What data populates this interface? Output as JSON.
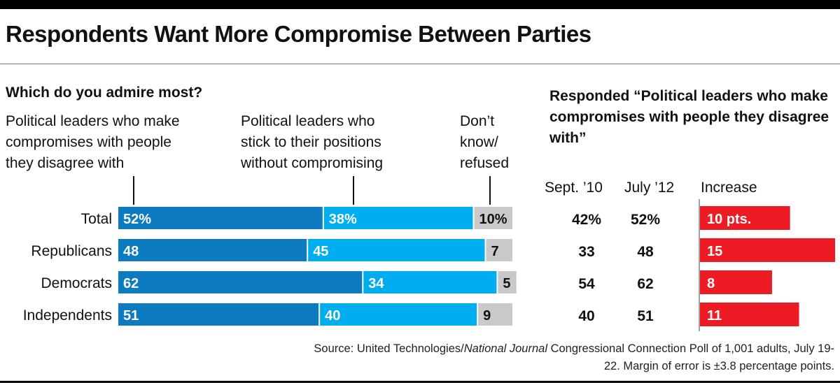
{
  "title": "Respondents Want More Compromise Between Parties",
  "question": "Which do you admire most?",
  "options": [
    "Political leaders who make\ncompromises with people\nthey disagree with",
    "Political leaders who\nstick to their positions\nwithout compromising",
    "Don’t\nknow/\nrefused"
  ],
  "right_heading": "Responded “Political leaders who make compromises with people they disagree with”",
  "columns": {
    "sept": "Sept. ’10",
    "july": "July ’12",
    "increase": "Increase"
  },
  "source": {
    "prefix": "Source: United Technologies/",
    "italic": "National Journal",
    "suffix": " Congressional Connection Poll of 1,001 adults, July 19-22. Margin of error is ±3.8 percentage points."
  },
  "colors": {
    "compromise": "#0c7bbf",
    "stick": "#00aeef",
    "dont_know": "#c9c9cb",
    "increase": "#ed1c24",
    "label_light": "#ffffff",
    "label_dark": "#111111"
  },
  "chart_data": [
    {
      "type": "bar",
      "orientation": "horizontal",
      "stacked": true,
      "categories": [
        "Total",
        "Republicans",
        "Democrats",
        "Independents"
      ],
      "series": [
        {
          "name": "Political leaders who make compromises with people they disagree with",
          "values": [
            52,
            48,
            62,
            51
          ],
          "labels": [
            "52%",
            "48",
            "62",
            "51"
          ]
        },
        {
          "name": "Political leaders who stick to their positions without compromising",
          "values": [
            38,
            45,
            34,
            40
          ],
          "labels": [
            "38%",
            "45",
            "34",
            "40"
          ]
        },
        {
          "name": "Don’t know/refused",
          "values": [
            10,
            7,
            5,
            9
          ],
          "labels": [
            "10%",
            "7",
            "5",
            "9"
          ]
        }
      ],
      "xlim": [
        0,
        100
      ]
    },
    {
      "type": "table",
      "categories": [
        "Total",
        "Republicans",
        "Democrats",
        "Independents"
      ],
      "columns": [
        "Sept. ’10",
        "July ’12"
      ],
      "rows": [
        [
          "42%",
          "52%"
        ],
        [
          "33",
          "48"
        ],
        [
          "54",
          "62"
        ],
        [
          "40",
          "51"
        ]
      ]
    },
    {
      "type": "bar",
      "orientation": "horizontal",
      "title": "Increase",
      "categories": [
        "Total",
        "Republicans",
        "Democrats",
        "Independents"
      ],
      "values": [
        10,
        15,
        8,
        11
      ],
      "labels": [
        "10 pts.",
        "15",
        "8",
        "11"
      ],
      "xlim": [
        0,
        15
      ]
    }
  ]
}
